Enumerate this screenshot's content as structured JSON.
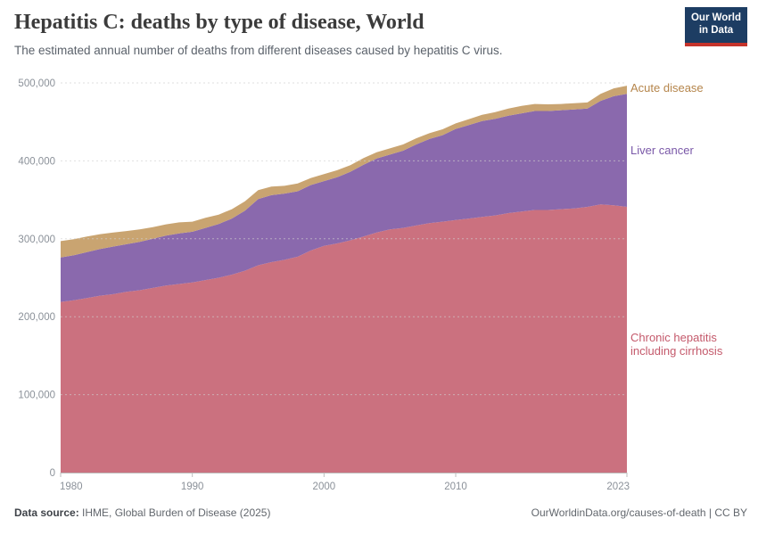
{
  "header": {
    "title": "Hepatitis C: deaths by type of disease, World",
    "subtitle": "The estimated annual number of deaths from different diseases caused by hepatitis C virus.",
    "logo": {
      "line1": "Our World",
      "line2": "in Data",
      "bg_color": "#1d3d63",
      "strip_color": "#c5332b"
    }
  },
  "footer": {
    "source_label": "Data source:",
    "source_value": " IHME, Global Burden of Disease (2025)",
    "rights": "OurWorldinData.org/causes-of-death | CC BY"
  },
  "chart_data": {
    "type": "area",
    "stacked": true,
    "title": "Hepatitis C: deaths by type of disease, World",
    "xlabel": "",
    "ylabel": "",
    "grid": "dashed-horizontal",
    "legend_position": "inline-right-of-plot",
    "ylim": [
      0,
      500000
    ],
    "y_ticks": [
      0,
      100000,
      200000,
      300000,
      400000,
      500000
    ],
    "x_ticks": [
      1980,
      1990,
      2000,
      2010,
      2023
    ],
    "x": [
      1980,
      1981,
      1982,
      1983,
      1984,
      1985,
      1986,
      1987,
      1988,
      1989,
      1990,
      1991,
      1992,
      1993,
      1994,
      1995,
      1996,
      1997,
      1998,
      1999,
      2000,
      2001,
      2002,
      2003,
      2004,
      2005,
      2006,
      2007,
      2008,
      2009,
      2010,
      2011,
      2012,
      2013,
      2014,
      2015,
      2016,
      2017,
      2018,
      2019,
      2020,
      2021,
      2022,
      2023
    ],
    "series": [
      {
        "name": "Chronic hepatitis including cirrhosis",
        "slug": "chronic-hepatitis-including-cirrhosis",
        "color": "#cb717f",
        "label_color": "#c4596b",
        "values": [
          219000,
          221000,
          224000,
          227000,
          229000,
          232000,
          234000,
          237000,
          240000,
          242000,
          244000,
          247000,
          250000,
          254000,
          259000,
          266000,
          270000,
          273000,
          277000,
          285000,
          291000,
          294000,
          298000,
          303000,
          308000,
          312000,
          314000,
          317000,
          320000,
          322000,
          324000,
          326000,
          328000,
          330000,
          333000,
          335000,
          337000,
          337000,
          338000,
          339000,
          341000,
          344000,
          343000,
          341000
        ]
      },
      {
        "name": "Liver cancer",
        "slug": "liver-cancer",
        "color": "#8a69ad",
        "label_color": "#7a58a8",
        "values": [
          57000,
          58000,
          59000,
          60000,
          61000,
          61000,
          62000,
          63000,
          64000,
          65000,
          65000,
          67000,
          69000,
          72000,
          77000,
          85000,
          86000,
          85000,
          84000,
          84000,
          83000,
          85000,
          88000,
          92000,
          95000,
          96000,
          99000,
          104000,
          108000,
          111000,
          117000,
          120000,
          123000,
          124000,
          125000,
          126000,
          127000,
          127000,
          127000,
          127000,
          126000,
          133000,
          140000,
          145000
        ]
      },
      {
        "name": "Acute disease",
        "slug": "acute-disease",
        "color": "#c9a471",
        "label_color": "#b5854b",
        "values": [
          21000,
          20500,
          20000,
          19000,
          18000,
          17000,
          16000,
          15000,
          14500,
          14000,
          13000,
          13000,
          12000,
          12000,
          12000,
          11500,
          11000,
          10000,
          10000,
          9000,
          9000,
          9000,
          8500,
          8500,
          8000,
          8000,
          8000,
          8000,
          7500,
          7500,
          7000,
          7500,
          8000,
          8500,
          9000,
          9500,
          9000,
          8500,
          8000,
          8000,
          8000,
          9000,
          10000,
          10500
        ]
      }
    ]
  }
}
